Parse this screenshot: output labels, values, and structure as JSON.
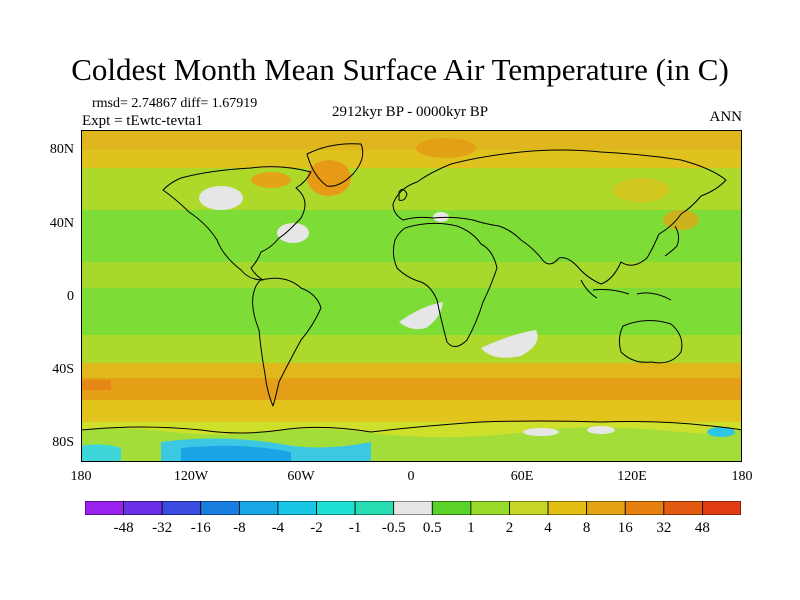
{
  "title": "Coldest Month Mean Surface Air Temperature (in C)",
  "stats": "rmsd= 2.74867 diff= 1.67919",
  "experiment": "Expt = tEwtc-tevta1",
  "period": "2912kyr BP - 0000kyr BP",
  "season": "ANN",
  "map": {
    "projection": "cylindrical equidistant",
    "lat_range": [
      -90,
      90
    ],
    "lon_range": [
      -180,
      180
    ],
    "y_ticks": [
      "80N",
      "40N",
      "0",
      "40S",
      "80S"
    ],
    "x_ticks": [
      "180",
      "120W",
      "60W",
      "0",
      "60E",
      "120E",
      "180"
    ],
    "background_color": "#7ddc35",
    "coastline_color": "#000000"
  },
  "colorbar": {
    "labels": [
      "-48",
      "-32",
      "-16",
      "-8",
      "-4",
      "-2",
      "-1",
      "-0.5",
      "0.5",
      "1",
      "2",
      "4",
      "8",
      "16",
      "32",
      "48"
    ],
    "colors": [
      "#9a22ee",
      "#6a2ee6",
      "#3a4ce0",
      "#1a7ee0",
      "#18a8e8",
      "#1ac6e6",
      "#1ee0d6",
      "#26dcb0",
      "#e6e6e6",
      "#5ad22a",
      "#98da28",
      "#c6d624",
      "#e2bf14",
      "#e4a412",
      "#e68010",
      "#e25a12",
      "#e23c12"
    ]
  }
}
